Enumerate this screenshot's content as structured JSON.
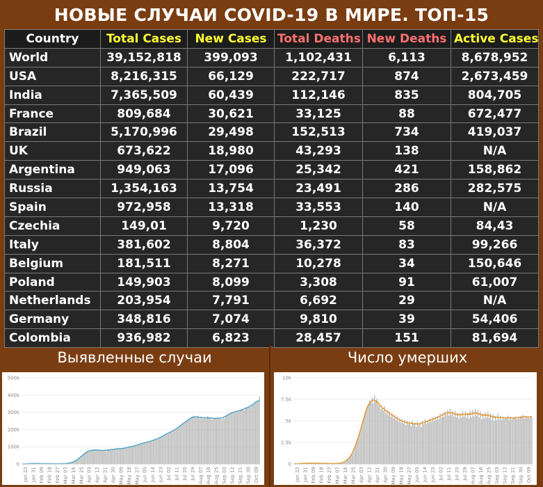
{
  "title": "НОВЫЕ СЛУЧАИ COVID-19 В МИРЕ. ТОП-15",
  "table": {
    "headers": [
      {
        "label": "Country",
        "color": "#ffffff"
      },
      {
        "label": "Total Cases",
        "color": "#ffff33"
      },
      {
        "label": "New Cases",
        "color": "#ffff33"
      },
      {
        "label": "Total Deaths",
        "color": "#ff7070"
      },
      {
        "label": "New Deaths",
        "color": "#ff7070"
      },
      {
        "label": "Active Cases",
        "color": "#ffff33"
      }
    ],
    "rows": [
      [
        "World",
        "39,152,818",
        "399,093",
        "1,102,431",
        "6,113",
        "8,678,952"
      ],
      [
        "USA",
        "8,216,315",
        "66,129",
        "222,717",
        "874",
        "2,673,459"
      ],
      [
        "India",
        "7,365,509",
        "60,439",
        "112,146",
        "835",
        "804,705"
      ],
      [
        "France",
        "809,684",
        "30,621",
        "33,125",
        "88",
        "672,477"
      ],
      [
        "Brazil",
        "5,170,996",
        "29,498",
        "152,513",
        "734",
        "419,037"
      ],
      [
        "UK",
        "673,622",
        "18,980",
        "43,293",
        "138",
        "N/A"
      ],
      [
        "Argentina",
        "949,063",
        "17,096",
        "25,342",
        "421",
        "158,862"
      ],
      [
        "Russia",
        "1,354,163",
        "13,754",
        "23,491",
        "286",
        "282,575"
      ],
      [
        "Spain",
        "972,958",
        "13,318",
        "33,553",
        "140",
        "N/A"
      ],
      [
        "Czechia",
        "149,01",
        "9,720",
        "1,230",
        "58",
        "84,43"
      ],
      [
        "Italy",
        "381,602",
        "8,804",
        "36,372",
        "83",
        "99,266"
      ],
      [
        "Belgium",
        "181,511",
        "8,271",
        "10,278",
        "34",
        "150,646"
      ],
      [
        "Poland",
        "149,903",
        "8,099",
        "3,308",
        "91",
        "61,007"
      ],
      [
        "Netherlands",
        "203,954",
        "7,791",
        "6,692",
        "29",
        "N/A"
      ],
      [
        "Germany",
        "348,816",
        "7,074",
        "9,810",
        "39",
        "54,406"
      ],
      [
        "Colombia",
        "936,982",
        "6,823",
        "28,457",
        "151",
        "81,694"
      ]
    ]
  },
  "panels": {
    "cases_title": "Выявленные случаи",
    "deaths_title": "Число умерших"
  },
  "chart_data": [
    {
      "type": "bar",
      "title": "Выявленные случаи",
      "ylim": [
        0,
        500000
      ],
      "yticks": [
        "0",
        "100k",
        "200k",
        "300k",
        "400k",
        "500k"
      ],
      "xticks": [
        "Jan 22",
        "Jan 31",
        "Feb 09",
        "Feb 18",
        "Feb 27",
        "Mar 07",
        "Mar 16",
        "Mar 25",
        "Apr 03",
        "Apr 12",
        "Apr 21",
        "Apr 30",
        "May 09",
        "May 18",
        "May 27",
        "Jun 05",
        "Jun 14",
        "Jun 23",
        "Jul 02",
        "Jul 11",
        "Jul 20",
        "Jul 29",
        "Aug 07",
        "Aug 16",
        "Aug 25",
        "Sep 03",
        "Sep 12",
        "Sep 21",
        "Sep 30",
        "Oct 09"
      ],
      "series": [
        {
          "values": [
            0,
            0,
            0,
            1000,
            2000,
            2000,
            2000,
            3000,
            3000,
            4000,
            3000,
            4000,
            3000,
            3000,
            3000,
            3000,
            2000,
            2000,
            2000,
            3000,
            2000,
            2000,
            2000,
            1000,
            2000,
            2000,
            2000,
            1000,
            1000,
            2000,
            2000,
            2000,
            2000,
            3000,
            3000,
            4000,
            4000,
            5000,
            8000,
            10000,
            14000,
            17000,
            23000,
            28000,
            34000,
            39000,
            46000,
            55000,
            62000,
            67000,
            73000,
            76000,
            80000,
            78000,
            82000,
            80000,
            86000,
            81000,
            78000,
            83000,
            78000,
            84000,
            79000,
            75000,
            79000,
            74000,
            87000,
            83000,
            82000,
            79000,
            85000,
            89000,
            90000,
            86000,
            88000,
            90000,
            93000,
            91000,
            88000,
            90000,
            93000,
            96000,
            99000,
            101000,
            103000,
            100000,
            104000,
            104000,
            107000,
            109000,
            112000,
            118000,
            121000,
            123000,
            120000,
            126000,
            122000,
            128000,
            132000,
            135000,
            132000,
            137000,
            140000,
            145000,
            142000,
            150000,
            152000,
            155000,
            160000,
            165000,
            168000,
            175000,
            178000,
            182000,
            183000,
            187000,
            190000,
            196000,
            200000,
            205000,
            210000,
            215000,
            220000,
            230000,
            234000,
            240000,
            245000,
            250000,
            255000,
            260000,
            265000,
            275000,
            280000,
            270000,
            276000,
            271000,
            280000,
            265000,
            275000,
            260000,
            265000,
            270000,
            260000,
            278000,
            274000,
            265000,
            262000,
            258000,
            270000,
            266000,
            262000,
            270000,
            262000,
            270000,
            258000,
            272000,
            265000,
            280000,
            282000,
            290000,
            295000,
            290000,
            300000,
            305000,
            296000,
            310000,
            300000,
            305000,
            310000,
            320000,
            316000,
            312000,
            320000,
            330000,
            325000,
            335000,
            330000,
            342000,
            345000,
            350000,
            356000,
            360000,
            370000,
            390000
          ]
        }
      ]
    },
    {
      "type": "bar",
      "title": "Число умерших",
      "ylim": [
        0,
        10000
      ],
      "yticks": [
        "0",
        "2.5k",
        "5k",
        "7.5k",
        "10k"
      ],
      "xticks": [
        "Jan 22",
        "Jan 31",
        "Feb 09",
        "Feb 18",
        "Feb 27",
        "Mar 07",
        "Mar 16",
        "Mar 25",
        "Apr 03",
        "Apr 12",
        "Apr 21",
        "Apr 30",
        "May 09",
        "May 18",
        "May 27",
        "Jun 05",
        "Jun 14",
        "Jun 23",
        "Jul 02",
        "Jul 11",
        "Jul 20",
        "Jul 29",
        "Aug 07",
        "Aug 16",
        "Aug 25",
        "Sep 03",
        "Sep 12",
        "Sep 21",
        "Sep 30",
        "Oct 09"
      ],
      "series": [
        {
          "values": [
            20,
            20,
            30,
            40,
            40,
            50,
            60,
            70,
            80,
            90,
            90,
            100,
            100,
            100,
            110,
            100,
            100,
            90,
            90,
            100,
            100,
            90,
            80,
            90,
            90,
            80,
            70,
            70,
            60,
            60,
            60,
            60,
            60,
            60,
            60,
            70,
            80,
            90,
            100,
            150,
            200,
            300,
            400,
            500,
            700,
            900,
            1100,
            1400,
            1800,
            2200,
            2600,
            3000,
            3500,
            4000,
            4600,
            5200,
            5800,
            6200,
            6600,
            7000,
            7400,
            7100,
            7700,
            7000,
            8000,
            7300,
            7600,
            6800,
            7000,
            6400,
            6600,
            6200,
            6700,
            5900,
            6300,
            5700,
            6100,
            5500,
            5900,
            5300,
            5700,
            5100,
            5500,
            4900,
            5300,
            4800,
            5200,
            4700,
            5100,
            4500,
            5000,
            4600,
            4900,
            4400,
            5000,
            4600,
            4800,
            4300,
            4900,
            4500,
            4800,
            4300,
            5000,
            4600,
            5200,
            4700,
            5100,
            4800,
            5300,
            4900,
            5400,
            5000,
            5500,
            5100,
            5600,
            5200,
            5800,
            5400,
            5900,
            5500,
            6100,
            5700,
            6300,
            5600,
            6400,
            5700,
            6200,
            5500,
            6100,
            5400,
            6000,
            5300,
            5900,
            5400,
            6200,
            5500,
            6100,
            5400,
            6000,
            5300,
            6200,
            5400,
            6300,
            5500,
            6400,
            5600,
            6300,
            5400,
            6100,
            5200,
            5900,
            5300,
            6000,
            5400,
            6100,
            5300,
            5900,
            5100,
            5800,
            5000,
            5600,
            5100,
            5900,
            5200,
            5600,
            5100,
            5500,
            5200,
            5400,
            5300,
            5600,
            5100,
            5500,
            5200,
            5400,
            5300,
            5500,
            5200,
            5400,
            5300,
            5600,
            5400,
            5700,
            5300,
            5600,
            5400,
            5500,
            5300,
            5600,
            5400
          ]
        }
      ]
    }
  ]
}
